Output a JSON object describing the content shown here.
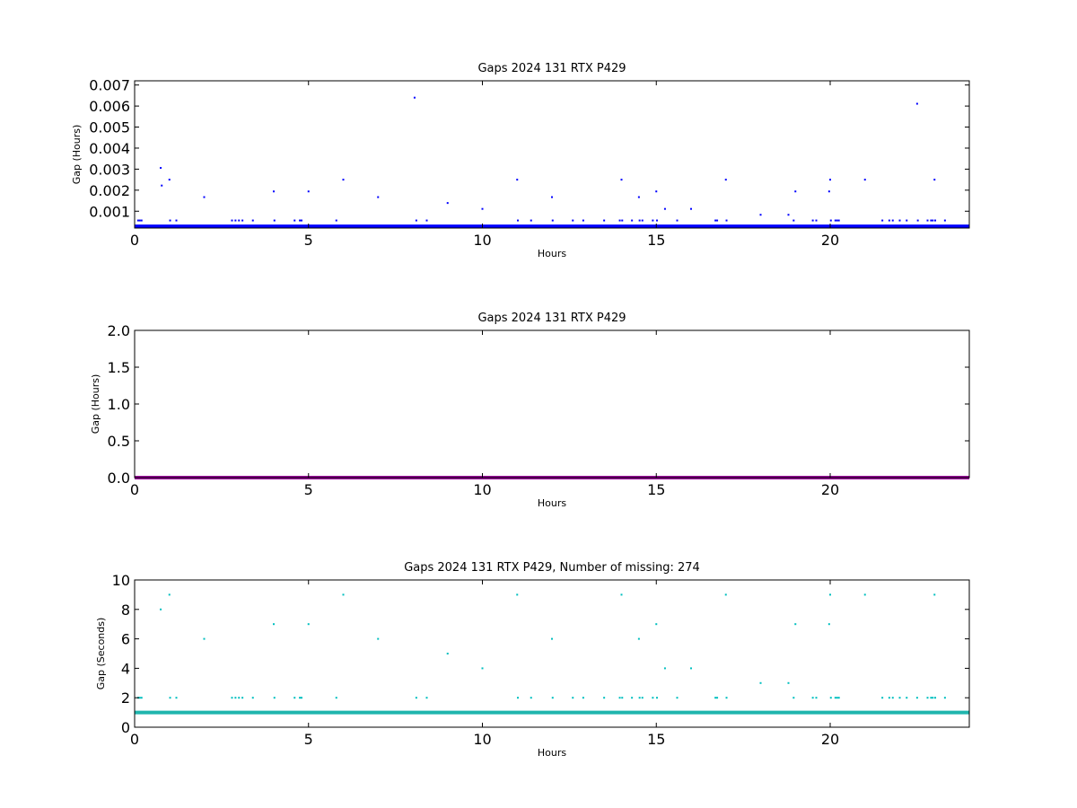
{
  "chart_data": [
    {
      "type": "scatter",
      "title": "Gaps 2024 131 RTX  P429",
      "xlabel": "Hours",
      "ylabel": "Gap (Hours)",
      "xlim": [
        0,
        24
      ],
      "ylim": [
        0.0002,
        0.0072
      ],
      "xticks": [
        0,
        5,
        10,
        15,
        20
      ],
      "xtick_labels": [
        "0",
        "5",
        "10",
        "15",
        "20"
      ],
      "yticks": [
        0.001,
        0.002,
        0.003,
        0.004,
        0.005,
        0.006,
        0.007
      ],
      "ytick_labels": [
        "0.001",
        "0.002",
        "0.003",
        "0.004",
        "0.005",
        "0.006",
        "0.007"
      ],
      "grid": false,
      "colors": {
        "points": "#0000ff",
        "baseline": "#0000ff"
      },
      "baseline": {
        "y": 0.000278,
        "x_range": [
          0,
          24
        ]
      },
      "series": [
        {
          "x": [
            0.1,
            0.15,
            0.2,
            0.75,
            0.78,
            1.0,
            1.02,
            1.2,
            2.0,
            2.8,
            2.9,
            3.0,
            3.1,
            3.4,
            4.0,
            4.02,
            4.6,
            4.75,
            4.8,
            5.0,
            5.8,
            6.0,
            7.0,
            8.05,
            8.1,
            8.4,
            9.0,
            10.0,
            11.0,
            11.02,
            11.4,
            12.0,
            12.02,
            12.6,
            12.9,
            13.5,
            13.95,
            14.0,
            14.02,
            14.3,
            14.5,
            14.52,
            14.6,
            14.9,
            15.0,
            15.02,
            15.25,
            15.6,
            16.0,
            16.7,
            16.75,
            17.0,
            17.02,
            18.0,
            18.8,
            18.95,
            19.0,
            19.5,
            19.6,
            19.97,
            20.0,
            20.02,
            20.15,
            20.2,
            20.25,
            21.0,
            21.5,
            21.7,
            21.8,
            22.0,
            22.2,
            22.5,
            22.52,
            22.8,
            22.9,
            22.95,
            23.0,
            23.02,
            23.3
          ],
          "y": [
            0.00056,
            0.00056,
            0.00056,
            0.00306,
            0.00222,
            0.0025,
            0.00056,
            0.00056,
            0.00167,
            0.00056,
            0.00056,
            0.00056,
            0.00056,
            0.00056,
            0.00194,
            0.00056,
            0.00056,
            0.00056,
            0.00056,
            0.00194,
            0.00056,
            0.0025,
            0.00167,
            0.0064,
            0.00056,
            0.00056,
            0.00139,
            0.00111,
            0.0025,
            0.00056,
            0.00056,
            0.00167,
            0.00056,
            0.00056,
            0.00056,
            0.00056,
            0.00056,
            0.0025,
            0.00056,
            0.00056,
            0.00167,
            0.00056,
            0.00056,
            0.00056,
            0.00194,
            0.00056,
            0.00111,
            0.00056,
            0.00111,
            0.00056,
            0.00056,
            0.0025,
            0.00056,
            0.00083,
            0.00083,
            0.00056,
            0.00194,
            0.00056,
            0.00056,
            0.00194,
            0.0025,
            0.00056,
            0.00056,
            0.00056,
            0.00056,
            0.0025,
            0.00056,
            0.00056,
            0.00056,
            0.00056,
            0.00056,
            0.00611,
            0.00056,
            0.00056,
            0.00056,
            0.00056,
            0.0025,
            0.00056,
            0.00056
          ]
        }
      ]
    },
    {
      "type": "line",
      "title": "Gaps 2024 131 RTX  P429",
      "xlabel": "Hours",
      "ylabel": "Gap (Hours)",
      "xlim": [
        0,
        24
      ],
      "ylim": [
        0,
        2.0
      ],
      "xticks": [
        0,
        5,
        10,
        15,
        20
      ],
      "xtick_labels": [
        "0",
        "5",
        "10",
        "15",
        "20"
      ],
      "yticks": [
        0.0,
        0.5,
        1.0,
        1.5,
        2.0
      ],
      "ytick_labels": [
        "0.0",
        "0.5",
        "1.0",
        "1.5",
        "2.0"
      ],
      "grid": false,
      "colors": {
        "baseline": "#990099"
      },
      "baseline": {
        "y": 0.0,
        "x_range": [
          0,
          24
        ]
      },
      "series": []
    },
    {
      "type": "scatter",
      "title": "Gaps 2024 131 RTX  P429, Number of missing: 274",
      "xlabel": "Hours",
      "ylabel": "Gap (Seconds)",
      "xlim": [
        0,
        24
      ],
      "ylim": [
        0,
        10
      ],
      "xticks": [
        0,
        5,
        10,
        15,
        20
      ],
      "xtick_labels": [
        "0",
        "5",
        "10",
        "15",
        "20"
      ],
      "yticks": [
        0,
        2,
        4,
        6,
        8,
        10
      ],
      "ytick_labels": [
        "0",
        "2",
        "4",
        "6",
        "8",
        "10"
      ],
      "grid": false,
      "colors": {
        "points": "#00bfbf",
        "baseline": "#1fb5ad"
      },
      "baseline": {
        "y": 1,
        "x_range": [
          0,
          24
        ]
      },
      "series": [
        {
          "x": [
            0.1,
            0.15,
            0.2,
            0.75,
            1.0,
            1.02,
            1.2,
            2.0,
            2.8,
            2.9,
            3.0,
            3.1,
            3.4,
            4.0,
            4.02,
            4.6,
            4.75,
            4.8,
            5.0,
            5.8,
            6.0,
            7.0,
            8.1,
            8.4,
            9.0,
            10.0,
            11.0,
            11.02,
            11.4,
            12.0,
            12.02,
            12.6,
            12.9,
            13.5,
            13.95,
            14.0,
            14.02,
            14.3,
            14.5,
            14.52,
            14.6,
            14.9,
            15.0,
            15.02,
            15.25,
            15.6,
            16.0,
            16.7,
            16.75,
            17.0,
            17.02,
            18.0,
            18.8,
            18.95,
            19.0,
            19.5,
            19.6,
            19.97,
            20.0,
            20.02,
            20.15,
            20.2,
            20.25,
            21.0,
            21.5,
            21.7,
            21.8,
            22.0,
            22.2,
            22.5,
            22.8,
            22.9,
            22.95,
            23.0,
            23.02,
            23.3
          ],
          "y": [
            2,
            2,
            2,
            8,
            9,
            2,
            2,
            6,
            2,
            2,
            2,
            2,
            2,
            7,
            2,
            2,
            2,
            2,
            7,
            2,
            9,
            6,
            2,
            2,
            5,
            4,
            9,
            2,
            2,
            6,
            2,
            2,
            2,
            2,
            2,
            9,
            2,
            2,
            6,
            2,
            2,
            2,
            7,
            2,
            4,
            2,
            4,
            2,
            2,
            9,
            2,
            3,
            3,
            2,
            7,
            2,
            2,
            7,
            9,
            2,
            2,
            2,
            2,
            9,
            2,
            2,
            2,
            2,
            2,
            2,
            2,
            2,
            2,
            9,
            2,
            2
          ]
        }
      ]
    }
  ]
}
